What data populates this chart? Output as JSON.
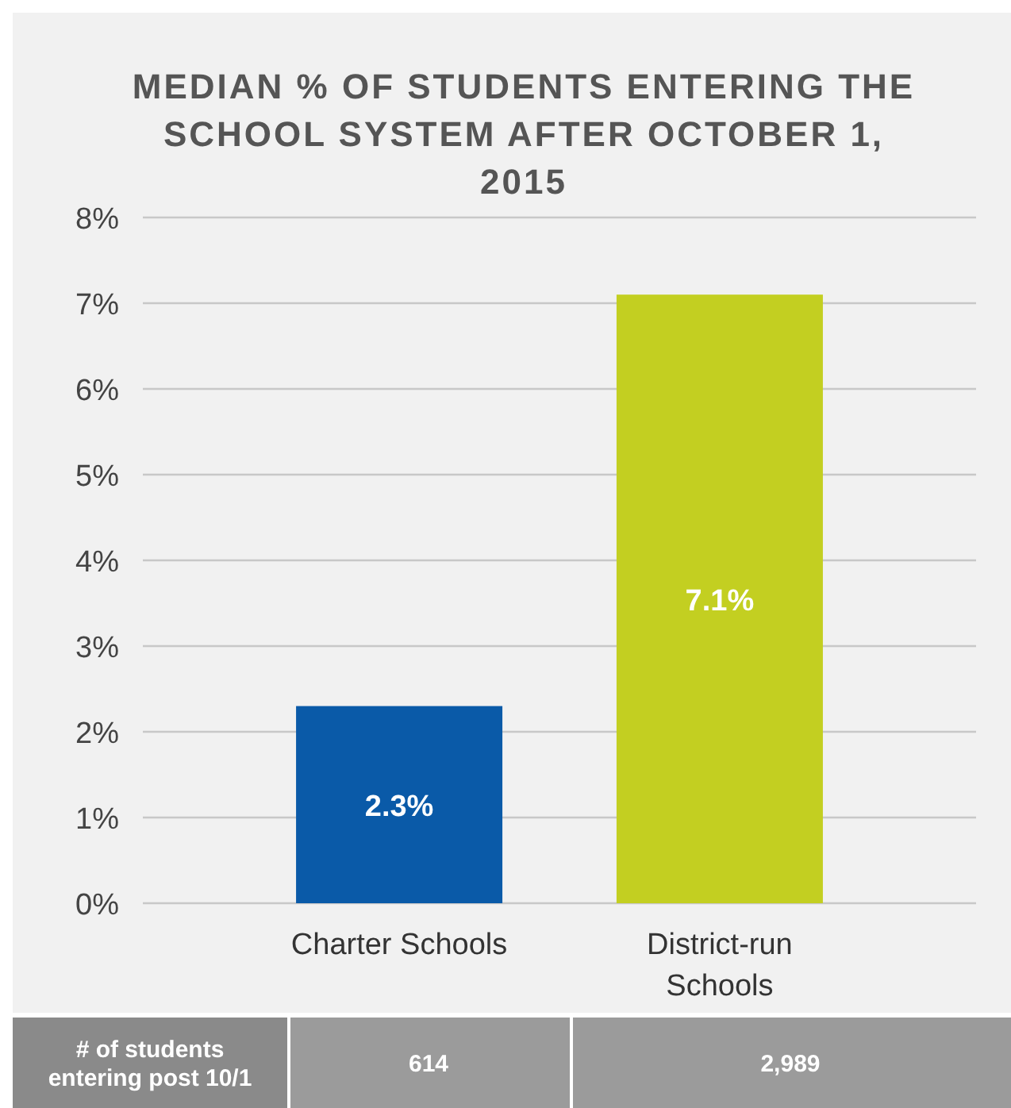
{
  "chart_data": {
    "type": "bar",
    "title": "MEDIAN % OF STUDENTS ENTERING THE SCHOOL SYSTEM AFTER OCTOBER 1, 2015",
    "categories": [
      "Charter Schools",
      "District-run Schools"
    ],
    "values": [
      2.3,
      7.1
    ],
    "colors": [
      "#0a5aa8",
      "#c3cf21"
    ],
    "value_labels": [
      "2.3%",
      "7.1%"
    ],
    "ylim": [
      0,
      8
    ],
    "yticks": [
      {
        "value": 0,
        "label": "0%"
      },
      {
        "value": 1,
        "label": "1%"
      },
      {
        "value": 2,
        "label": "2%"
      },
      {
        "value": 3,
        "label": "3%"
      },
      {
        "value": 4,
        "label": "4%"
      },
      {
        "value": 5,
        "label": "5%"
      },
      {
        "value": 6,
        "label": "6%"
      },
      {
        "value": 7,
        "label": "7%"
      },
      {
        "value": 8,
        "label": "8%"
      }
    ],
    "grid": "y",
    "annotations": [
      "# of students entering post 10/1",
      "614",
      "2,989"
    ]
  }
}
